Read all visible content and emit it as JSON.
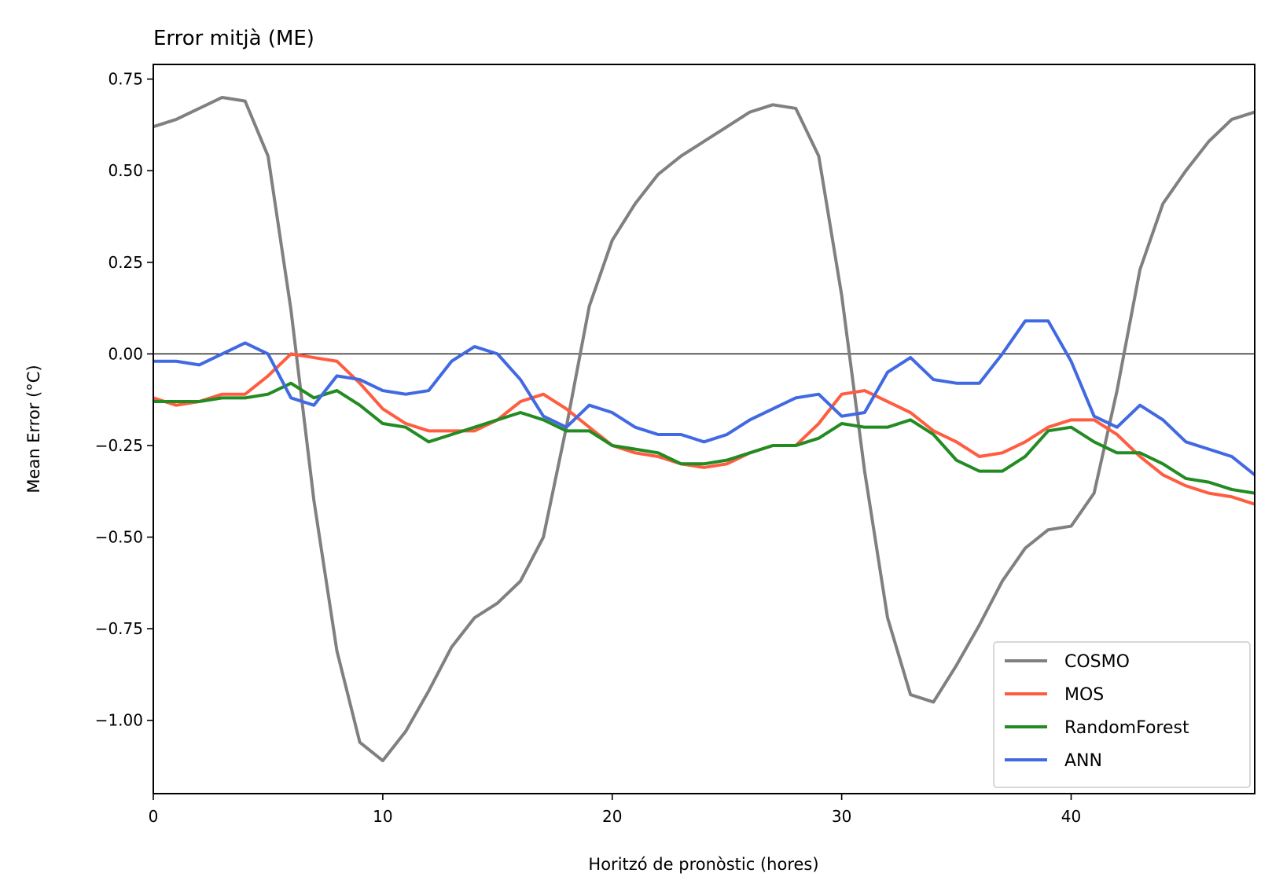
{
  "chart_data": {
    "type": "line",
    "title": "Error mitjà (ME)",
    "xlabel": "Horitzó de pronòstic (hores)",
    "ylabel": "Mean Error (°C)",
    "xlim": [
      0,
      48
    ],
    "ylim": [
      -1.2,
      0.79
    ],
    "xticks": [
      0,
      10,
      20,
      30,
      40
    ],
    "xtick_labels": [
      "0",
      "10",
      "20",
      "30",
      "40"
    ],
    "yticks": [
      0.75,
      0.5,
      0.25,
      0.0,
      -0.25,
      -0.5,
      -0.75,
      -1.0
    ],
    "ytick_labels": [
      "0.75",
      "0.50",
      "0.25",
      "0.00",
      "−0.25",
      "−0.50",
      "−0.75",
      "−1.00"
    ],
    "zero_line": true,
    "grid": false,
    "legend_position": "bottom-right",
    "x": [
      0,
      1,
      2,
      3,
      4,
      5,
      6,
      7,
      8,
      9,
      10,
      11,
      12,
      13,
      14,
      15,
      16,
      17,
      18,
      19,
      20,
      21,
      22,
      23,
      24,
      25,
      26,
      27,
      28,
      29,
      30,
      31,
      32,
      33,
      34,
      35,
      36,
      37,
      38,
      39,
      40,
      41,
      42,
      43,
      44,
      45,
      46,
      47,
      48
    ],
    "series": [
      {
        "name": "COSMO",
        "color": "#808080",
        "values": [
          0.62,
          0.64,
          0.67,
          0.7,
          0.69,
          0.54,
          0.12,
          -0.4,
          -0.81,
          -1.06,
          -1.11,
          -1.03,
          -0.92,
          -0.8,
          -0.72,
          -0.68,
          -0.62,
          -0.5,
          -0.2,
          0.13,
          0.31,
          0.41,
          0.49,
          0.54,
          0.58,
          0.62,
          0.66,
          0.68,
          0.67,
          0.54,
          0.16,
          -0.32,
          -0.72,
          -0.93,
          -0.95,
          -0.85,
          -0.74,
          -0.62,
          -0.53,
          -0.48,
          -0.47,
          -0.38,
          -0.1,
          0.23,
          0.41,
          0.5,
          0.58,
          0.64,
          0.66
        ]
      },
      {
        "name": "MOS",
        "color": "#ff5c40",
        "values": [
          -0.12,
          -0.14,
          -0.13,
          -0.11,
          -0.11,
          -0.06,
          0.0,
          -0.01,
          -0.02,
          -0.08,
          -0.15,
          -0.19,
          -0.21,
          -0.21,
          -0.21,
          -0.18,
          -0.13,
          -0.11,
          -0.15,
          -0.2,
          -0.25,
          -0.27,
          -0.28,
          -0.3,
          -0.31,
          -0.3,
          -0.27,
          -0.25,
          -0.25,
          -0.19,
          -0.11,
          -0.1,
          -0.13,
          -0.16,
          -0.21,
          -0.24,
          -0.28,
          -0.27,
          -0.24,
          -0.2,
          -0.18,
          -0.18,
          -0.22,
          -0.28,
          -0.33,
          -0.36,
          -0.38,
          -0.39,
          -0.41
        ]
      },
      {
        "name": "RandomForest",
        "color": "#228b22",
        "values": [
          -0.13,
          -0.13,
          -0.13,
          -0.12,
          -0.12,
          -0.11,
          -0.08,
          -0.12,
          -0.1,
          -0.14,
          -0.19,
          -0.2,
          -0.24,
          -0.22,
          -0.2,
          -0.18,
          -0.16,
          -0.18,
          -0.21,
          -0.21,
          -0.25,
          -0.26,
          -0.27,
          -0.3,
          -0.3,
          -0.29,
          -0.27,
          -0.25,
          -0.25,
          -0.23,
          -0.19,
          -0.2,
          -0.2,
          -0.18,
          -0.22,
          -0.29,
          -0.32,
          -0.32,
          -0.28,
          -0.21,
          -0.2,
          -0.24,
          -0.27,
          -0.27,
          -0.3,
          -0.34,
          -0.35,
          -0.37,
          -0.38
        ]
      },
      {
        "name": "ANN",
        "color": "#4169e1",
        "values": [
          -0.02,
          -0.02,
          -0.03,
          0.0,
          0.03,
          0.0,
          -0.12,
          -0.14,
          -0.06,
          -0.07,
          -0.1,
          -0.11,
          -0.1,
          -0.02,
          0.02,
          0.0,
          -0.07,
          -0.17,
          -0.2,
          -0.14,
          -0.16,
          -0.2,
          -0.22,
          -0.22,
          -0.24,
          -0.22,
          -0.18,
          -0.15,
          -0.12,
          -0.11,
          -0.17,
          -0.16,
          -0.05,
          -0.01,
          -0.07,
          -0.08,
          -0.08,
          0.0,
          0.09,
          0.09,
          -0.02,
          -0.17,
          -0.2,
          -0.14,
          -0.18,
          -0.24,
          -0.26,
          -0.28,
          -0.33
        ]
      }
    ]
  }
}
